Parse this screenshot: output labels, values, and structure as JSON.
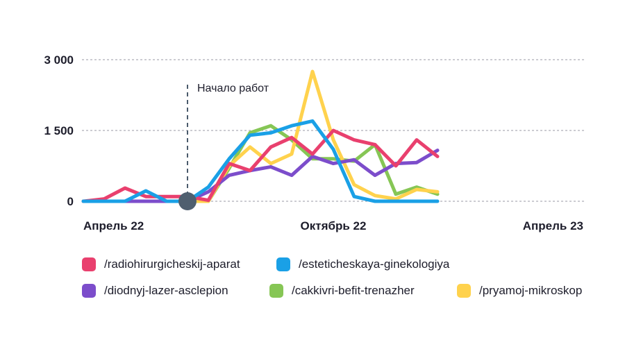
{
  "chart_data": {
    "type": "line",
    "title": "",
    "xlabel": "",
    "ylabel": "",
    "ylim": [
      0,
      3000
    ],
    "y_ticks": [
      {
        "value": 0,
        "label": "0"
      },
      {
        "value": 1500,
        "label": "1 500"
      },
      {
        "value": 3000,
        "label": "3 000"
      }
    ],
    "x": [
      "2022-04-01",
      "2022-04-15",
      "2022-05-01",
      "2022-05-15",
      "2022-06-01",
      "2022-06-15",
      "2022-07-01",
      "2022-07-15",
      "2022-08-01",
      "2022-08-15",
      "2022-09-01",
      "2022-09-15",
      "2022-10-01",
      "2022-10-15",
      "2022-11-01",
      "2022-11-15",
      "2022-12-01",
      "2022-12-15",
      "2023-01-01",
      "2023-01-15",
      "2023-02-01",
      "2023-02-15",
      "2023-03-01",
      "2023-03-15",
      "2023-04-01"
    ],
    "x_tick_labels": [
      {
        "x": "2022-04-01",
        "label": "Апрель 22"
      },
      {
        "x": "2022-10-01",
        "label": "Октябрь 22"
      },
      {
        "x": "2023-04-01",
        "label": "Апрель 23"
      }
    ],
    "grid": true,
    "annotation": {
      "x": "2022-06-15",
      "label": "Начало работ"
    },
    "series": [
      {
        "name": "/radiohirurgicheskij-aparat",
        "color": "#e9406e",
        "values": [
          0,
          50,
          280,
          100,
          100,
          100,
          20,
          800,
          650,
          1150,
          1350,
          1000,
          1500,
          1300,
          1200,
          750,
          1300,
          950,
          null,
          null,
          null,
          null,
          null,
          null,
          null
        ]
      },
      {
        "name": "/esteticheskaya-ginekologiya",
        "color": "#1aa0e6",
        "values": [
          0,
          0,
          0,
          220,
          0,
          0,
          300,
          900,
          1400,
          1450,
          1600,
          1700,
          1100,
          100,
          0,
          0,
          0,
          0,
          null,
          null,
          null,
          null,
          null,
          null,
          null
        ]
      },
      {
        "name": "/diodnyj-lazer-asclepion",
        "color": "#7c4dcb",
        "values": [
          0,
          0,
          0,
          0,
          0,
          0,
          200,
          550,
          650,
          730,
          550,
          950,
          800,
          880,
          550,
          800,
          820,
          1080,
          null,
          null,
          null,
          null,
          null,
          null,
          null
        ]
      },
      {
        "name": "/cakkivri-befit-trenazher",
        "color": "#86c655",
        "values": [
          0,
          0,
          0,
          0,
          0,
          0,
          0,
          700,
          1450,
          1600,
          1300,
          900,
          900,
          850,
          1200,
          150,
          300,
          150,
          null,
          null,
          null,
          null,
          null,
          null,
          null
        ]
      },
      {
        "name": "/pryamoj-mikroskop",
        "color": "#ffd24d",
        "values": [
          0,
          0,
          0,
          0,
          0,
          0,
          0,
          750,
          1150,
          800,
          1000,
          2750,
          1300,
          350,
          120,
          50,
          250,
          200,
          null,
          null,
          null,
          null,
          null,
          null,
          null
        ]
      }
    ]
  }
}
